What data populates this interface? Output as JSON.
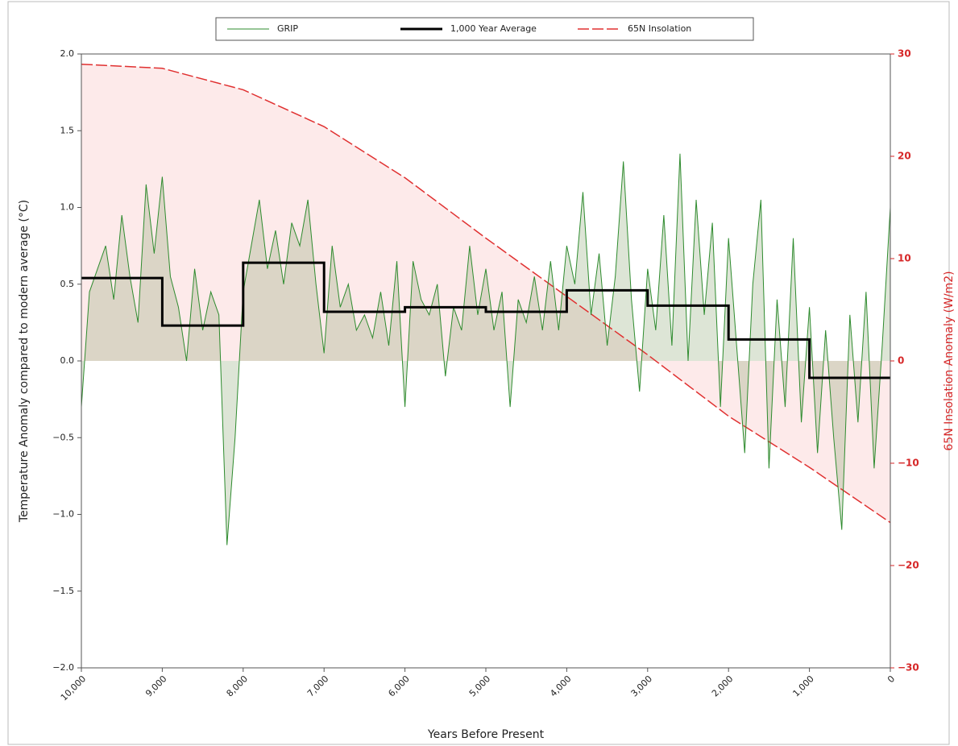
{
  "chart_data": {
    "type": "line",
    "xlabel": "Years Before Present",
    "ylabel": "Temperature Anomaly compared to modern average (°C)",
    "y2label": "65N Insolation Anomaly (W/m2)",
    "xlim": [
      10000,
      0
    ],
    "xticks": [
      {
        "value": 10000,
        "label": "10,000"
      },
      {
        "value": 9000,
        "label": "9,000"
      },
      {
        "value": 8000,
        "label": "8,000"
      },
      {
        "value": 7000,
        "label": "7,000"
      },
      {
        "value": 6000,
        "label": "6,000"
      },
      {
        "value": 5000,
        "label": "5,000"
      },
      {
        "value": 4000,
        "label": "4,000"
      },
      {
        "value": 3000,
        "label": "3,000"
      },
      {
        "value": 2000,
        "label": "2,000"
      },
      {
        "value": 1000,
        "label": "1,000"
      },
      0
    ],
    "ylim": [
      -2,
      2
    ],
    "yticks": [
      {
        "value": -2,
        "label": "−2.0"
      },
      {
        "value": -1.5,
        "label": "−1.5"
      },
      {
        "value": -1,
        "label": "−1.0"
      },
      {
        "value": -0.5,
        "label": "−0.5"
      },
      {
        "value": 0,
        "label": "0.0"
      },
      {
        "value": 0.5,
        "label": "0.5"
      },
      {
        "value": 1,
        "label": "1.0"
      },
      {
        "value": 1.5,
        "label": "1.5"
      },
      {
        "value": 2,
        "label": "2.0"
      }
    ],
    "y2lim": [
      -30,
      30
    ],
    "y2ticks": [
      {
        "value": -30,
        "label": "−30"
      },
      {
        "value": -20,
        "label": "−20"
      },
      {
        "value": -10,
        "label": "−10"
      },
      0,
      10,
      20,
      30
    ],
    "y2color": "#d62728",
    "grid": false,
    "series": [
      {
        "name": "GRIP",
        "color": "#2e8b2e",
        "fill_color": "rgba(120,150,90,0.25)",
        "dash": "none",
        "width": 1,
        "x": [
          10000,
          9900,
          9800,
          9700,
          9600,
          9500,
          9400,
          9300,
          9200,
          9100,
          9000,
          8900,
          8800,
          8700,
          8600,
          8500,
          8400,
          8300,
          8200,
          8100,
          8000,
          7900,
          7800,
          7700,
          7600,
          7500,
          7400,
          7300,
          7200,
          7100,
          7000,
          6900,
          6800,
          6700,
          6600,
          6500,
          6400,
          6300,
          6200,
          6100,
          6000,
          5900,
          5800,
          5700,
          5600,
          5500,
          5400,
          5300,
          5200,
          5100,
          5000,
          4900,
          4800,
          4700,
          4600,
          4500,
          4400,
          4300,
          4200,
          4100,
          4000,
          3900,
          3800,
          3700,
          3600,
          3500,
          3400,
          3300,
          3200,
          3100,
          3000,
          2900,
          2800,
          2700,
          2600,
          2500,
          2400,
          2300,
          2200,
          2100,
          2000,
          1900,
          1800,
          1700,
          1600,
          1500,
          1400,
          1300,
          1200,
          1100,
          1000,
          900,
          800,
          700,
          600,
          500,
          400,
          300,
          200,
          100,
          0
        ],
        "values": [
          -0.3,
          0.45,
          0.6,
          0.75,
          0.4,
          0.95,
          0.55,
          0.25,
          1.15,
          0.7,
          1.2,
          0.55,
          0.35,
          0.0,
          0.6,
          0.2,
          0.45,
          0.3,
          -1.2,
          -0.5,
          0.45,
          0.75,
          1.05,
          0.6,
          0.85,
          0.5,
          0.9,
          0.75,
          1.05,
          0.5,
          0.05,
          0.75,
          0.35,
          0.5,
          0.2,
          0.3,
          0.15,
          0.45,
          0.1,
          0.65,
          -0.3,
          0.65,
          0.4,
          0.3,
          0.5,
          -0.1,
          0.35,
          0.2,
          0.75,
          0.3,
          0.6,
          0.2,
          0.45,
          -0.3,
          0.4,
          0.25,
          0.55,
          0.2,
          0.65,
          0.2,
          0.75,
          0.5,
          1.1,
          0.3,
          0.7,
          0.1,
          0.55,
          1.3,
          0.4,
          -0.2,
          0.6,
          0.2,
          0.95,
          0.1,
          1.35,
          0.0,
          1.05,
          0.3,
          0.9,
          -0.3,
          0.8,
          0.1,
          -0.6,
          0.5,
          1.05,
          -0.7,
          0.4,
          -0.3,
          0.8,
          -0.4,
          0.35,
          -0.6,
          0.2,
          -0.5,
          -1.1,
          0.3,
          -0.4,
          0.45,
          -0.7,
          0.1,
          1.0
        ]
      },
      {
        "name": "1,000 Year Average",
        "color": "#000000",
        "dash": "none",
        "width": 3,
        "x": [
          10000,
          9000,
          9000,
          8000,
          8000,
          7000,
          7000,
          6000,
          6000,
          5000,
          5000,
          4000,
          4000,
          3000,
          3000,
          2000,
          2000,
          1000,
          1000,
          0
        ],
        "values": [
          0.54,
          0.54,
          0.23,
          0.23,
          0.64,
          0.64,
          0.32,
          0.32,
          0.35,
          0.35,
          0.32,
          0.32,
          0.46,
          0.46,
          0.36,
          0.36,
          0.14,
          0.14,
          -0.11,
          -0.11
        ]
      },
      {
        "name": "65N Insolation",
        "color": "#e03030",
        "fill_color": "rgba(245,150,150,0.2)",
        "dash": "14,4",
        "width": 1.5,
        "axis": "y2",
        "x": [
          10000,
          9000,
          8000,
          7000,
          6000,
          5000,
          4000,
          3000,
          2000,
          1000,
          0
        ],
        "values": [
          29.0,
          28.6,
          26.5,
          22.9,
          17.9,
          12.0,
          6.3,
          0.6,
          -5.4,
          -10.4,
          -15.8
        ]
      }
    ]
  }
}
